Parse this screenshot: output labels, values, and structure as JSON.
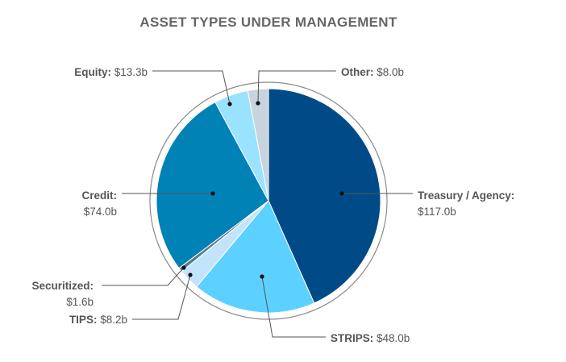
{
  "chart_data": {
    "type": "pie",
    "title": "ASSET TYPES UNDER MANAGEMENT",
    "slices": [
      {
        "label": "Treasury / Agency:",
        "value": 117.0,
        "value_text": "$117.0b",
        "color": "#004b87"
      },
      {
        "label": "STRIPS:",
        "value": 48.0,
        "value_text": "$48.0b",
        "color": "#5cd0ff"
      },
      {
        "label": "TIPS:",
        "value": 8.2,
        "value_text": "$8.2b",
        "color": "#c3e3fb"
      },
      {
        "label": "Securitized:",
        "value": 1.6,
        "value_text": "$1.6b",
        "color": "#5a7a8a"
      },
      {
        "label": "Credit:",
        "value": 74.0,
        "value_text": "$74.0b",
        "color": "#0082b6"
      },
      {
        "label": "Equity:",
        "value": 13.3,
        "value_text": "$13.3b",
        "color": "#99e3ff"
      },
      {
        "label": "Other:",
        "value": 8.0,
        "value_text": "$8.0b",
        "color": "#c8d3de"
      }
    ],
    "start_angle": "12 o'clock",
    "direction": "clockwise",
    "legend": "none (callout labels)"
  }
}
